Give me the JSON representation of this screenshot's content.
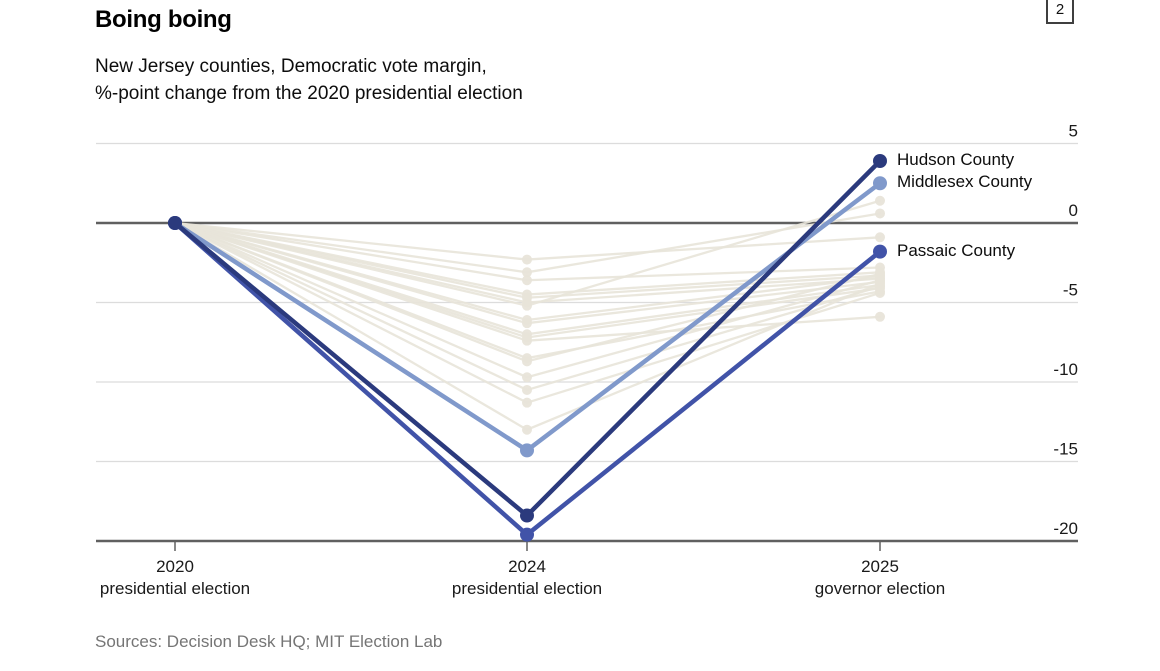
{
  "header": {
    "title": "Boing boing",
    "subtitle_line1": "New Jersey counties, Democratic vote margin,",
    "subtitle_line2": "%-point change from the 2020 presidential election",
    "page_badge": "2"
  },
  "footer": {
    "sources": "Sources: Decision Desk HQ; MIT Election Lab"
  },
  "chart_data": {
    "type": "line",
    "title": "Boing boing",
    "subtitle": "New Jersey counties, Democratic vote margin, %-point change from the 2020 presidential election",
    "x_ticks": [
      {
        "year": "2020",
        "label": "presidential election"
      },
      {
        "year": "2024",
        "label": "presidential election"
      },
      {
        "year": "2025",
        "label": "governor election"
      }
    ],
    "y_ticks": [
      5,
      0,
      -5,
      -10,
      -15,
      -20
    ],
    "ylim": [
      -20.6,
      5.2
    ],
    "grid": true,
    "baseline_value": 0,
    "highlighted_series": [
      {
        "name": "Hudson County",
        "color": "#2b3a7d",
        "values": [
          0,
          -18.4,
          3.9
        ]
      },
      {
        "name": "Middlesex County",
        "color": "#8099cb",
        "values": [
          0,
          -14.3,
          2.5
        ]
      },
      {
        "name": "Passaic County",
        "color": "#4153a8",
        "values": [
          0,
          -19.6,
          -1.8
        ]
      }
    ],
    "background_series": [
      {
        "values": [
          0,
          -2.3,
          -0.9
        ]
      },
      {
        "values": [
          0,
          -3.1,
          0.6
        ]
      },
      {
        "values": [
          0,
          -3.6,
          -2.8
        ]
      },
      {
        "values": [
          0,
          -4.5,
          -3.1
        ]
      },
      {
        "values": [
          0,
          -4.7,
          -3.3
        ]
      },
      {
        "values": [
          0,
          -5.0,
          -3.5
        ]
      },
      {
        "values": [
          0,
          -5.2,
          1.4
        ]
      },
      {
        "values": [
          0,
          -6.1,
          -3.4
        ]
      },
      {
        "values": [
          0,
          -6.3,
          -3.7
        ]
      },
      {
        "values": [
          0,
          -7.0,
          -3.9
        ]
      },
      {
        "values": [
          0,
          -7.2,
          -4.1
        ]
      },
      {
        "values": [
          0,
          -7.4,
          -5.9
        ]
      },
      {
        "values": [
          0,
          -8.5,
          -4.3
        ]
      },
      {
        "values": [
          0,
          -8.7,
          -3.2
        ]
      },
      {
        "values": [
          0,
          -9.7,
          -3.6
        ]
      },
      {
        "values": [
          0,
          -10.5,
          -4.0
        ]
      },
      {
        "values": [
          0,
          -11.3,
          -4.4
        ]
      },
      {
        "values": [
          0,
          -13.0,
          -3.8
        ]
      }
    ],
    "colors": {
      "background_line": "#e8e4d9",
      "grid": "#dcdcdc",
      "axis": "#606060",
      "tick_text": "#1a1a1a"
    },
    "legend_position": "right-of-last-point"
  }
}
